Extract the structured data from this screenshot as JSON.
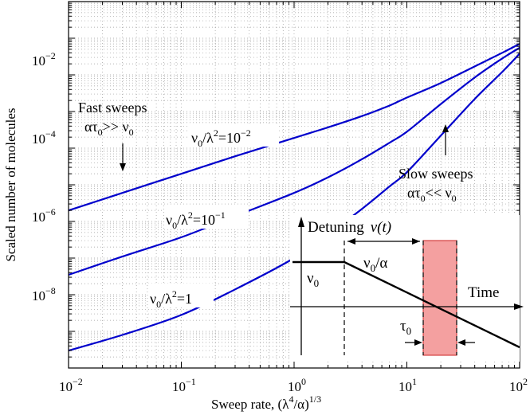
{
  "chart_data": {
    "type": "line",
    "title": "",
    "xlabel": "Sweep rate, (λ⁴/α)¹ᐟ³",
    "ylabel": "Scaled number of molecules",
    "x_scale": "log",
    "y_scale": "log",
    "xlim": [
      0.01,
      100
    ],
    "ylim": [
      1e-10,
      1
    ],
    "grid": true,
    "x_ticks": [
      {
        "value": 0.01,
        "base": "10",
        "exp": "−2"
      },
      {
        "value": 0.1,
        "base": "10",
        "exp": "−1"
      },
      {
        "value": 1,
        "base": "10",
        "exp": "0"
      },
      {
        "value": 10,
        "base": "10",
        "exp": "1"
      },
      {
        "value": 100,
        "base": "10",
        "exp": "2"
      }
    ],
    "y_ticks": [
      {
        "value": 1e-08,
        "base": "10",
        "exp": "−8"
      },
      {
        "value": 1e-06,
        "base": "10",
        "exp": "−6"
      },
      {
        "value": 0.0001,
        "base": "10",
        "exp": "−4"
      },
      {
        "value": 0.01,
        "base": "10",
        "exp": "−2"
      }
    ],
    "series": [
      {
        "name": "ν₀/λ²=10⁻²",
        "color": "#0000cc",
        "x": [
          0.01,
          0.03,
          0.1,
          0.3,
          1,
          2,
          4,
          7,
          10,
          20,
          40,
          70,
          100
        ],
        "y": [
          2e-06,
          6e-06,
          2e-05,
          6e-05,
          0.00019,
          0.00037,
          0.00075,
          0.00145,
          0.0024,
          0.006,
          0.017,
          0.04,
          0.07
        ]
      },
      {
        "name": "ν₀/λ²=10⁻¹",
        "color": "#0000cc",
        "x": [
          0.01,
          0.03,
          0.1,
          0.3,
          1,
          2,
          4,
          7,
          10,
          20,
          40,
          70,
          100
        ],
        "y": [
          3.5e-08,
          1.1e-07,
          3.7e-07,
          1.4e-06,
          6e-06,
          1.6e-05,
          5e-05,
          0.00014,
          0.00028,
          0.0016,
          0.0085,
          0.028,
          0.055
        ]
      },
      {
        "name": "ν₀/λ²=1",
        "color": "#0000cc",
        "x": [
          0.01,
          0.03,
          0.1,
          0.3,
          1,
          2,
          4,
          7,
          10,
          20,
          40,
          70,
          100
        ],
        "y": [
          3e-10,
          8e-10,
          2.8e-09,
          1.4e-08,
          1e-07,
          4.5e-07,
          2.2e-06,
          9e-06,
          2.2e-05,
          0.00022,
          0.0022,
          0.012,
          0.038
        ]
      }
    ],
    "annotations": {
      "fast_line1": "Fast sweeps",
      "fast_line2": "ατ₀>> ν₀",
      "slow_line1": "Slow sweeps",
      "slow_line2": "ατ₀<< ν₀",
      "label_top": "ν₀/λ²=10⁻²",
      "label_mid": "ν₀/λ²=10⁻¹",
      "label_bot": "ν₀/λ²=1"
    },
    "inset": {
      "detuning_label": "Detuning",
      "detuning_func": "ν(t)",
      "nu0": "ν₀",
      "nu0_over_alpha": "ν₀/α",
      "time_label": "Time",
      "tau0": "τ₀",
      "shade_color": "#f4a0a0"
    }
  }
}
